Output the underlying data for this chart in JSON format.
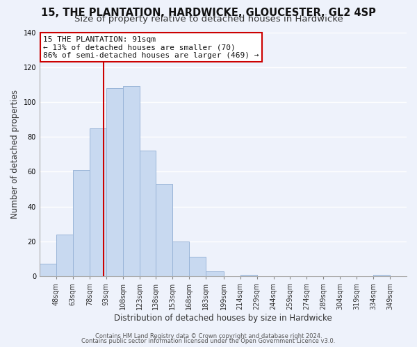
{
  "title_line1": "15, THE PLANTATION, HARDWICKE, GLOUCESTER, GL2 4SP",
  "title_line2": "Size of property relative to detached houses in Hardwicke",
  "xlabel": "Distribution of detached houses by size in Hardwicke",
  "ylabel": "Number of detached properties",
  "bin_edges": [
    33,
    48,
    63,
    78,
    93,
    108,
    123,
    138,
    153,
    168,
    183,
    199,
    214,
    229,
    244,
    259,
    274,
    289,
    304,
    319,
    334,
    349
  ],
  "bar_heights": [
    7,
    24,
    61,
    85,
    108,
    109,
    72,
    53,
    20,
    11,
    3,
    0,
    1,
    0,
    0,
    0,
    0,
    0,
    0,
    0,
    1
  ],
  "tick_labels": [
    "48sqm",
    "63sqm",
    "78sqm",
    "93sqm",
    "108sqm",
    "123sqm",
    "138sqm",
    "153sqm",
    "168sqm",
    "183sqm",
    "199sqm",
    "214sqm",
    "229sqm",
    "244sqm",
    "259sqm",
    "274sqm",
    "289sqm",
    "304sqm",
    "319sqm",
    "334sqm",
    "349sqm"
  ],
  "tick_positions": [
    48,
    63,
    78,
    93,
    108,
    123,
    138,
    153,
    168,
    183,
    199,
    214,
    229,
    244,
    259,
    274,
    289,
    304,
    319,
    334,
    349
  ],
  "bar_color": "#c8d9f0",
  "bar_edge_color": "#9ab5d8",
  "vline_x": 91,
  "vline_color": "#cc0000",
  "ylim": [
    0,
    140
  ],
  "xlim": [
    33,
    364
  ],
  "annotation_title": "15 THE PLANTATION: 91sqm",
  "annotation_line2": "← 13% of detached houses are smaller (70)",
  "annotation_line3": "86% of semi-detached houses are larger (469) →",
  "footer_line1": "Contains HM Land Registry data © Crown copyright and database right 2024.",
  "footer_line2": "Contains public sector information licensed under the Open Government Licence v3.0.",
  "background_color": "#eef2fb",
  "plot_background_color": "#eef2fb",
  "grid_color": "#ffffff",
  "title_fontsize": 10.5,
  "subtitle_fontsize": 9.5,
  "axis_label_fontsize": 8.5,
  "tick_fontsize": 7,
  "footer_fontsize": 6,
  "annotation_fontsize": 8
}
